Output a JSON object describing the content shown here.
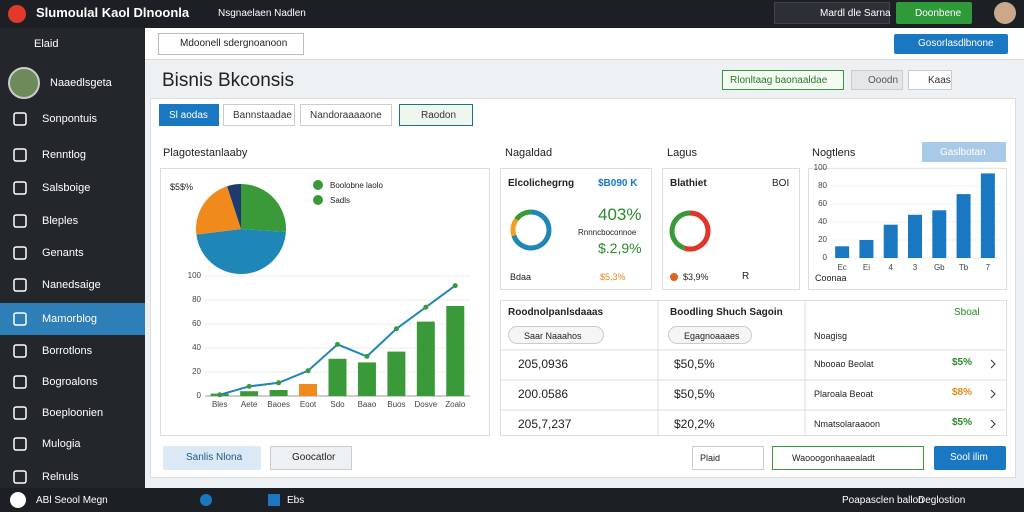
{
  "top_bar": {
    "title": "Slumoulal Kaol Dlnoonla",
    "menu": "Nsgnaelaen Nadlen",
    "selector": "Mardl dle Sarna",
    "action": "Doonbene"
  },
  "sidebar": {
    "header": "Elaid",
    "user": "Naaedlsgeta",
    "items": [
      "Sonpontuis",
      "Renntlog",
      "Salsboige",
      "Bleples",
      "Genants",
      "Nanedsaige",
      "Mamorblog",
      "Borrotlons",
      "Bogroalons",
      "Boeploonien",
      "Mulogia",
      "Relnuls"
    ],
    "active": 6
  },
  "toolbar": {
    "search": "Mdoonell sdergnoanoon",
    "button": "Gosorlasdlbnone"
  },
  "page": {
    "title": "Bisnis Bkconsis",
    "actions": [
      "Rlonltaag baonaaldae",
      "Ooodn",
      "Kaas"
    ]
  },
  "tabs": [
    "Sl aodas",
    "Bannstaadae",
    "Nandoraaaaone",
    "Raodon"
  ],
  "sections": [
    "Plagotestanlaaby",
    "Nagaldad",
    "Lagus",
    "Nogtlens"
  ],
  "section_button": "Gaslbotan",
  "pie": {
    "type": "pie",
    "label": "$5$%",
    "values": [
      26,
      47,
      22,
      5
    ],
    "colors": [
      "#3a9a3a",
      "#1f86b8",
      "#f08a1c",
      "#1e3a6e"
    ],
    "legend": [
      "Boolobne laolo",
      "Sadls"
    ]
  },
  "combo": {
    "type": "bar",
    "categories": [
      "Bles",
      "Aete",
      "Baoes",
      "Eoot",
      "Sdo",
      "Baao",
      "Buos",
      "Dosve",
      "Zoalo"
    ],
    "values": [
      2,
      4,
      5,
      10,
      31,
      28,
      37,
      62,
      75
    ],
    "colors": [
      "#3a9a3a",
      "#3a9a3a",
      "#3a9a3a",
      "#f08a1c",
      "#3a9a3a",
      "#3a9a3a",
      "#3a9a3a",
      "#3a9a3a",
      "#3a9a3a"
    ],
    "line_values": [
      1,
      8,
      11,
      21,
      43,
      33,
      56,
      74,
      92
    ],
    "line_color": "#1f86b8",
    "ylim": [
      0,
      100
    ],
    "yticks": [
      0,
      20,
      40,
      60,
      80,
      100
    ]
  },
  "card1": {
    "title": "Elcolichegrng",
    "value": "$B090 K",
    "big": "403%",
    "sub": "Rnnncboconnoe",
    "pct": "$.2,9%",
    "foot_left": "Bdaa",
    "foot_value": "$5,3%",
    "donut": [
      70,
      15,
      15
    ],
    "colors": [
      "#1f86b8",
      "#f0a01c",
      "#3a9a3a"
    ]
  },
  "card2": {
    "title": "Blathiet",
    "value": "BOI",
    "foot_value": "$3,9%",
    "foot_right": "R",
    "donut": [
      55,
      45
    ],
    "colors": [
      "#e0352b",
      "#3a9a3a"
    ]
  },
  "bars": {
    "type": "bar",
    "label": "Coonaa",
    "categories": [
      "Ec",
      "Ei",
      "4",
      "3",
      "Gb",
      "Tb",
      "7"
    ],
    "values": [
      13,
      20,
      37,
      48,
      53,
      71,
      94
    ],
    "color": "#1a78c2",
    "ylim": [
      0,
      100
    ],
    "yticks": [
      0,
      20,
      40,
      60,
      80,
      100
    ]
  },
  "tables": {
    "left_title": "Roodnolpanlsdaaas",
    "left_filter": "Saar Naaahos",
    "right_title": "Boodling Shuch Sagoin",
    "right_filter": "Egagnoaaaes",
    "right_col": "Noagisg",
    "right_action": "Sboal",
    "rows": [
      [
        "205,0936",
        "$50,5%",
        "Nbooao Beolat",
        "$5%"
      ],
      [
        "200.0586",
        "$50,5%",
        "Plaroala Beoat",
        "$8%"
      ],
      [
        "205,7,237",
        "$20,2%",
        "Nmatsolaraaoon",
        "$5%"
      ]
    ]
  },
  "footer": {
    "chip": "Sanlis Nlona",
    "select": "Goocatlor",
    "input": "Plaid",
    "dropdown": "Waooogonhaaealadt",
    "button": "Sool ilim"
  },
  "taskbar": {
    "start": "ABl Seool Megn",
    "app": "Ebs",
    "status": "Poapasclen ballon",
    "right": "Deglostion"
  }
}
